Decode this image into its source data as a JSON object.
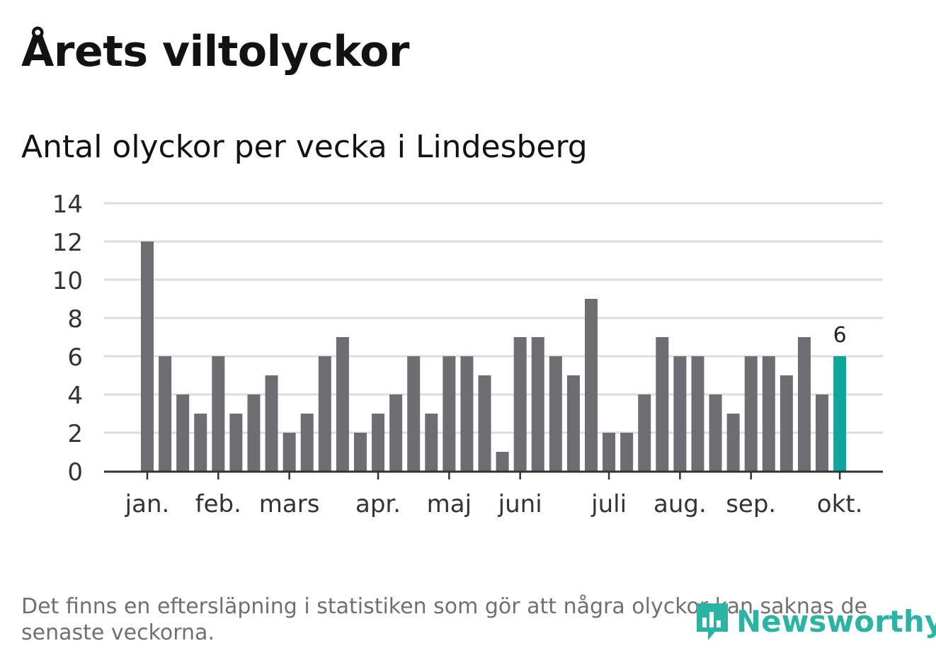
{
  "title": "Årets viltolyckor",
  "subtitle": "Antal olyckor per vecka i Lindesberg",
  "footnote": "Det finns en eftersläpning i statistiken som gör att några olyckor kan saknas de senaste veckorna.",
  "brand": {
    "name": "Newsworthy",
    "color": "#2bb3a3"
  },
  "colors": {
    "bar": "#6e6d72",
    "highlight": "#0ea59a",
    "grid": "#dddddd",
    "axis": "#333333",
    "text": "#333333"
  },
  "chart_data": {
    "type": "bar",
    "title": "Antal olyckor per vecka i Lindesberg",
    "xlabel": "",
    "ylabel": "",
    "ylim": [
      0,
      14
    ],
    "yticks": [
      "0",
      "2",
      "4",
      "6",
      "8",
      "10",
      "12",
      "14"
    ],
    "values": [
      12,
      6,
      4,
      3,
      6,
      3,
      4,
      5,
      2,
      3,
      6,
      7,
      2,
      3,
      4,
      6,
      3,
      6,
      6,
      5,
      1,
      7,
      7,
      6,
      5,
      9,
      2,
      2,
      4,
      7,
      6,
      6,
      4,
      3,
      6,
      6,
      5,
      7,
      4,
      6
    ],
    "highlight_index": 39,
    "highlight_label": "6",
    "month_ticks": [
      {
        "label": "jan.",
        "bar": 0
      },
      {
        "label": "feb.",
        "bar": 4
      },
      {
        "label": "mars",
        "bar": 8
      },
      {
        "label": "apr.",
        "bar": 13
      },
      {
        "label": "maj",
        "bar": 17
      },
      {
        "label": "juni",
        "bar": 21
      },
      {
        "label": "juli",
        "bar": 26
      },
      {
        "label": "aug.",
        "bar": 30
      },
      {
        "label": "sep.",
        "bar": 34
      },
      {
        "label": "okt.",
        "bar": 39
      }
    ]
  }
}
